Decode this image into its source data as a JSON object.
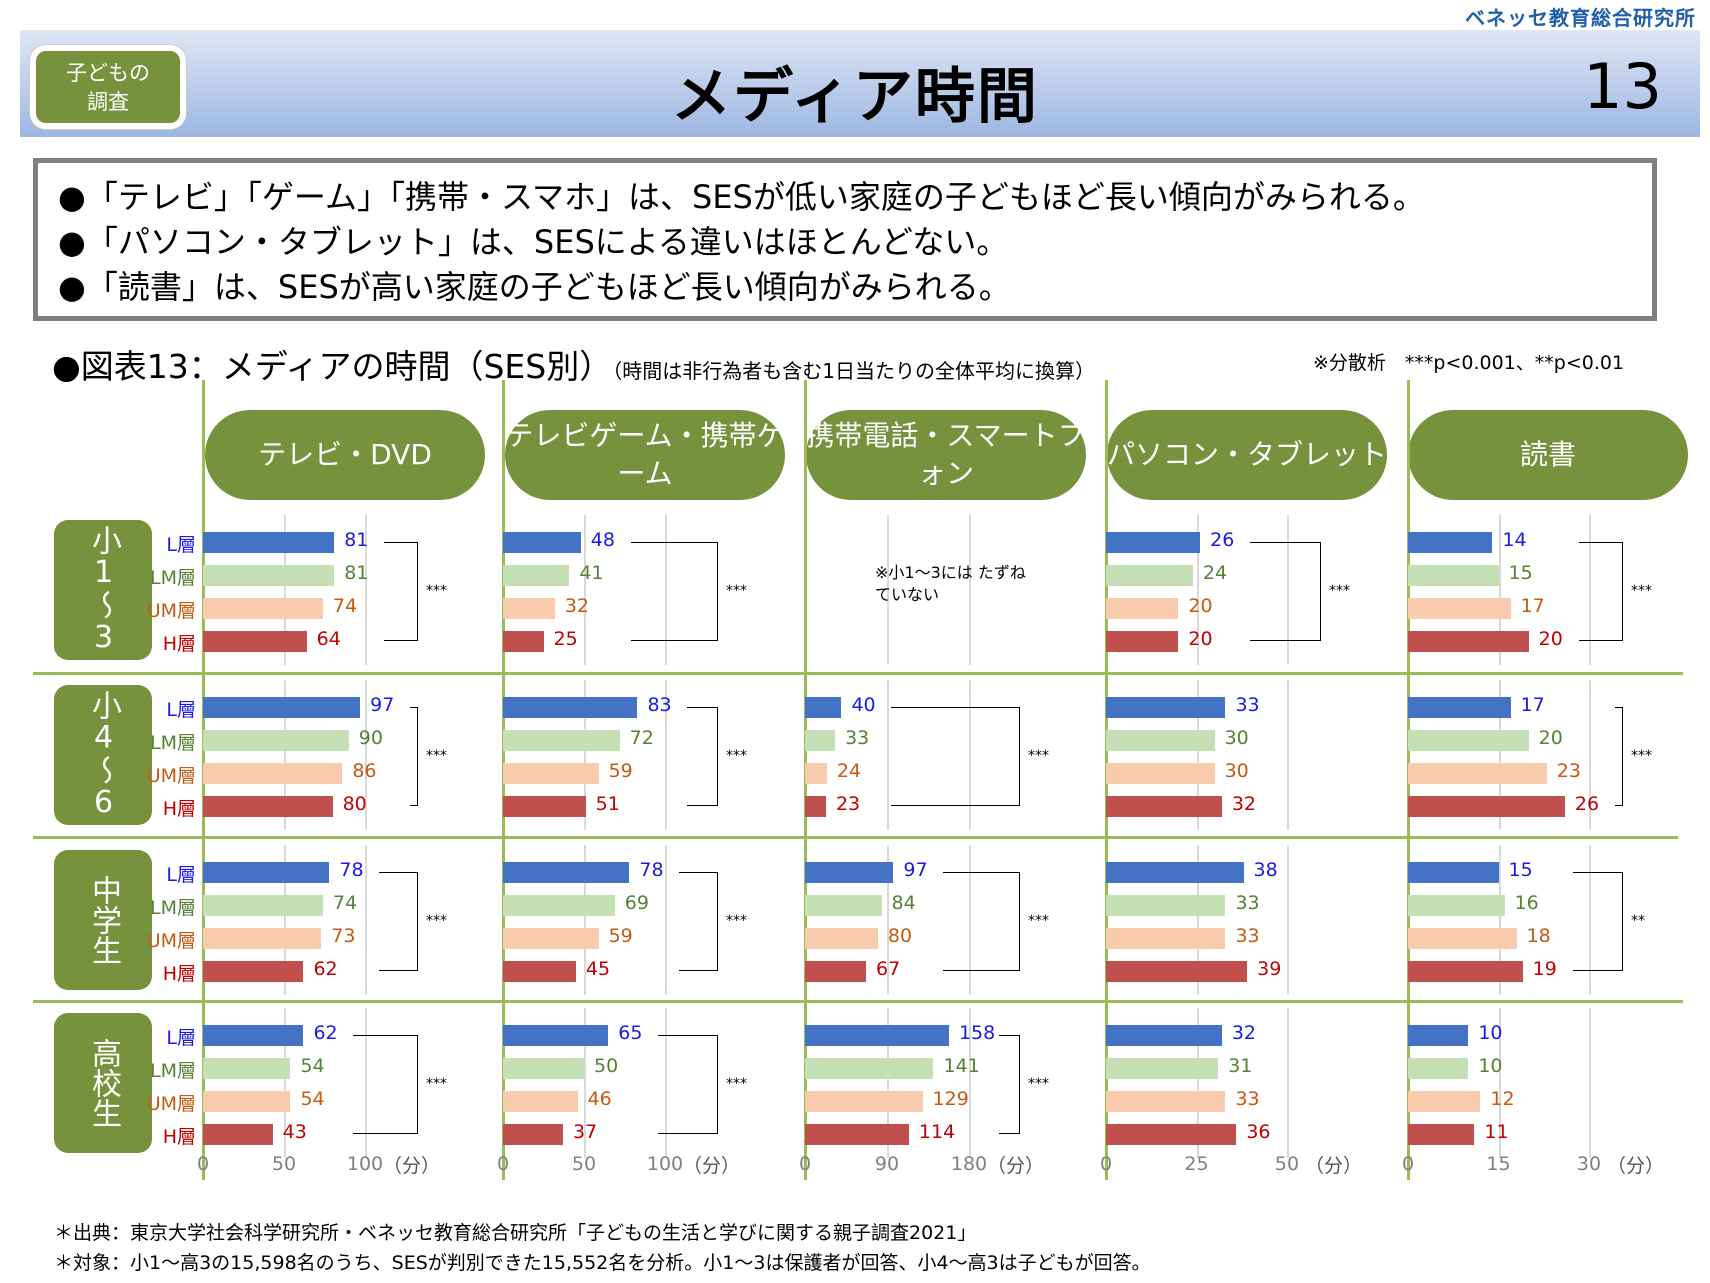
{
  "header": {
    "organization": "ベネッセ教育総合研究所",
    "badge_line1": "子どもの",
    "badge_line2": "調査",
    "title": "メディア時間",
    "page_number": "13"
  },
  "summary": [
    "●「テレビ」「ゲーム」「携帯・スマホ」は、SESが低い家庭の子どもほど長い傾向がみられる。",
    "●「パソコン・タブレット」は、SESによる違いはほとんどない。",
    "●「読書」は、SESが高い家庭の子どもほど長い傾向がみられる。"
  ],
  "notes": [
    "＊出典：東京大学社会科学研究所・ベネッセ教育総合研究所「子どもの生活と学びに関する親子調査2021」",
    "＊対象：小1～高3の15,598名のうち、SESが判別できた15,552名を分析。小1～3は保護者が回答、小4～高3は子どもが回答。"
  ],
  "colors": {
    "L": "#4472c4",
    "LM": "#c5e0b4",
    "UM": "#f8cbad",
    "H": "#c0504d",
    "L_text": "#1a1ae6",
    "LM_text": "#548235",
    "UM_text": "#c55a11",
    "H_text": "#c00000",
    "accent": "#76923c"
  },
  "chart_data": {
    "type": "bar",
    "title": "●図表13：メディアの時間（SES別）",
    "subtitle": "（時間は非行為者も含む1日当たりの全体平均に換算）",
    "significance_note": "※分散析　***p<0.001、**p<0.01",
    "unit": "（分）",
    "groups": [
      "小1～3",
      "小4～6",
      "中学生",
      "高校生"
    ],
    "levels": [
      "L層",
      "LM層",
      "UM層",
      "H層"
    ],
    "panels": [
      {
        "name": "テレビ・DVD",
        "xlim": [
          0,
          100
        ],
        "ticks": [
          "0",
          "50",
          "100"
        ],
        "values": [
          [
            81,
            81,
            74,
            64
          ],
          [
            97,
            90,
            86,
            80
          ],
          [
            78,
            74,
            73,
            62
          ],
          [
            62,
            54,
            54,
            43
          ]
        ],
        "sig": [
          "***",
          "***",
          "***",
          "***"
        ]
      },
      {
        "name": "テレビゲーム・携帯ゲーム",
        "xlim": [
          0,
          100
        ],
        "ticks": [
          "0",
          "50",
          "100"
        ],
        "values": [
          [
            48,
            41,
            32,
            25
          ],
          [
            83,
            72,
            59,
            51
          ],
          [
            78,
            69,
            59,
            45
          ],
          [
            65,
            50,
            46,
            37
          ]
        ],
        "sig": [
          "***",
          "***",
          "***",
          "***"
        ]
      },
      {
        "name": "携帯電話・スマートフォン",
        "xlim": [
          0,
          180
        ],
        "ticks": [
          "0",
          "90",
          "180"
        ],
        "values": [
          null,
          [
            40,
            33,
            24,
            23
          ],
          [
            97,
            84,
            80,
            67
          ],
          [
            158,
            141,
            129,
            114
          ]
        ],
        "sig": [
          "",
          "***",
          "***",
          "***"
        ],
        "annotation": "※小1～3には たずねていない"
      },
      {
        "name": "パソコン・タブレット",
        "xlim": [
          0,
          50
        ],
        "ticks": [
          "0",
          "25",
          "50"
        ],
        "values": [
          [
            26,
            24,
            20,
            20
          ],
          [
            33,
            30,
            30,
            32
          ],
          [
            38,
            33,
            33,
            39
          ],
          [
            32,
            31,
            33,
            36
          ]
        ],
        "sig": [
          "***",
          "",
          "",
          ""
        ]
      },
      {
        "name": "読書",
        "xlim": [
          0,
          30
        ],
        "ticks": [
          "0",
          "15",
          "30"
        ],
        "values": [
          [
            14,
            15,
            17,
            20
          ],
          [
            17,
            20,
            23,
            26
          ],
          [
            15,
            16,
            18,
            19
          ],
          [
            10,
            10,
            12,
            11
          ]
        ],
        "sig": [
          "***",
          "***",
          "**",
          ""
        ]
      }
    ]
  }
}
